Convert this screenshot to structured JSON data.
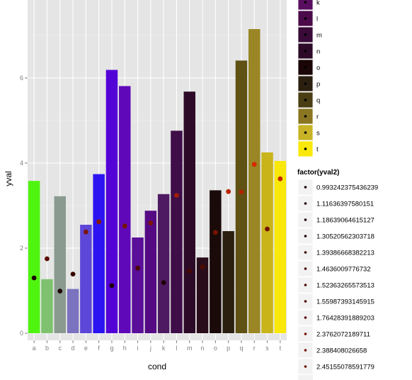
{
  "chart_data": {
    "type": "bar",
    "xlabel": "cond",
    "ylabel": "yval",
    "ylim": [
      0,
      7.5
    ],
    "yticks": [
      0,
      2,
      4,
      6
    ],
    "grid": true,
    "legend_position": "right",
    "categories": [
      "a",
      "b",
      "c",
      "d",
      "e",
      "f",
      "g",
      "h",
      "i",
      "j",
      "k",
      "l",
      "m",
      "n",
      "o",
      "p",
      "q",
      "r",
      "s",
      "t"
    ],
    "series": [
      {
        "values": [
          3.58,
          1.27,
          3.22,
          1.04,
          2.55,
          3.74,
          6.19,
          5.81,
          2.25,
          2.88,
          3.27,
          4.76,
          5.68,
          1.78,
          3.36,
          2.4,
          6.41,
          7.15,
          4.25,
          4.05
        ],
        "colors": [
          "#4ff50f",
          "#7ec26f",
          "#8a9a8e",
          "#7b72c0",
          "#5d47d8",
          "#2c14f2",
          "#5303d6",
          "#5f08ba",
          "#5a0e99",
          "#550a84",
          "#4e1a62",
          "#3f0d48",
          "#2c0a28",
          "#2a0d1a",
          "#1a0a0a",
          "#2b2010",
          "#5f5014",
          "#9a8624",
          "#c9b41a",
          "#f9e80a"
        ]
      },
      {
        "points": [
          1.3,
          1.75,
          0.99,
          1.39,
          2.38,
          2.62,
          1.12,
          2.52,
          1.53,
          2.59,
          1.19,
          3.24,
          1.46,
          1.56,
          2.37,
          3.33,
          3.32,
          3.97,
          2.45,
          3.63
        ],
        "point_colors": [
          "#1c0000",
          "#5a0a00",
          "#1c0000",
          "#3a0500",
          "#7a1400",
          "#8a1700",
          "#1c0000",
          "#741300",
          "#4a0900",
          "#7f1500",
          "#1c0000",
          "#a11e00",
          "#460800",
          "#4d0900",
          "#781300",
          "#b82400",
          "#b02200",
          "#d62a00",
          "#741300",
          "#c42700"
        ]
      }
    ],
    "legend_fill_entries": [
      "k",
      "l",
      "m",
      "n",
      "o",
      "p",
      "q",
      "r",
      "s",
      "t"
    ],
    "legend_fill_colors": [
      "#5a0e60",
      "#4b0a4a",
      "#3a0a38",
      "#2c0a28",
      "#1a0507",
      "#2b2010",
      "#4a3e14",
      "#8a7622",
      "#c7b325",
      "#f9e80a"
    ],
    "legend_points_title": "factor(yval2)",
    "legend_points_entries": [
      "0.993242375436239",
      "1.11636397580151",
      "1.18639064615127",
      "1.30520562303718",
      "1.39386668382213",
      "1.4636009776732",
      "1.52363265573513",
      "1.55987393145915",
      "1.76428391889203",
      "2.3762072189711",
      "2.388408026658",
      "2.45155078591779"
    ],
    "legend_point_colors": [
      "#1c0000",
      "#1c0000",
      "#1c0000",
      "#1c0000",
      "#3a0500",
      "#440700",
      "#4a0900",
      "#4d0900",
      "#5a0a00",
      "#781300",
      "#7a1400",
      "#741300"
    ]
  }
}
